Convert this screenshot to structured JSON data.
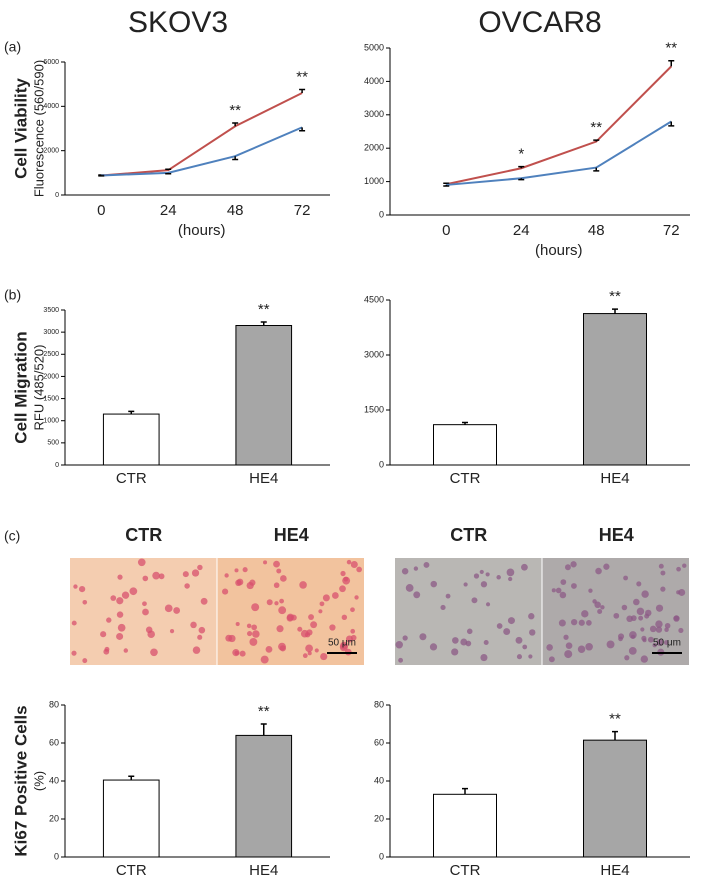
{
  "column_titles": [
    "SKOV3",
    "OVCAR8"
  ],
  "panel_labels": [
    "(a)",
    "(b)",
    "(c)"
  ],
  "micrographs": [
    {
      "labels": [
        "CTR",
        "HE4"
      ],
      "scale_bar": "50 μm"
    },
    {
      "labels": [
        "CTR",
        "HE4"
      ],
      "scale_bar": "50 μm"
    }
  ],
  "chart_data": [
    {
      "type": "line",
      "ylabel": [
        "Cell Viability",
        "Fluorescence (560/590)"
      ],
      "xlabel": "(hours)",
      "x": [
        0,
        24,
        48,
        72
      ],
      "xlim": [
        -13,
        82
      ],
      "xticks": [
        0,
        24,
        48,
        72
      ],
      "ylim": [
        0,
        6000
      ],
      "yticks": [
        0,
        2000,
        4000,
        6000
      ],
      "series": [
        {
          "color": "#c0504d",
          "values": [
            880,
            1120,
            3100,
            4600
          ],
          "errors": [
            20,
            40,
            150,
            160
          ]
        },
        {
          "color": "#4f81bd",
          "values": [
            880,
            1000,
            1750,
            3050
          ],
          "errors": [
            20,
            40,
            150,
            150
          ]
        }
      ],
      "annotations": [
        {
          "x": 48,
          "text": "**"
        },
        {
          "x": 72,
          "text": "**"
        }
      ]
    },
    {
      "type": "line",
      "xlabel": "(hours)",
      "x": [
        0,
        24,
        48,
        72
      ],
      "xlim": [
        -18,
        78
      ],
      "xticks": [
        0,
        24,
        48,
        72
      ],
      "ylim": [
        0,
        5000
      ],
      "yticks": [
        0,
        1000,
        2000,
        3000,
        4000,
        5000
      ],
      "series": [
        {
          "color": "#c0504d",
          "values": [
            920,
            1400,
            2200,
            4450
          ],
          "errors": [
            30,
            50,
            40,
            170
          ]
        },
        {
          "color": "#4f81bd",
          "values": [
            900,
            1100,
            1420,
            2800
          ],
          "errors": [
            30,
            40,
            100,
            130
          ]
        }
      ],
      "annotations": [
        {
          "x": 24,
          "text": "*"
        },
        {
          "x": 48,
          "text": "**"
        },
        {
          "x": 72,
          "text": "**"
        }
      ]
    },
    {
      "type": "bar",
      "ylabel": [
        "Cell Migration",
        "RFU (485/520)"
      ],
      "categories": [
        "CTR",
        "HE4"
      ],
      "values": [
        1150,
        3150
      ],
      "errors": [
        60,
        80
      ],
      "colors": [
        "#ffffff",
        "#a6a6a6"
      ],
      "ylim": [
        0,
        3500
      ],
      "yticks": [
        0,
        500,
        1000,
        1500,
        2000,
        2500,
        3000,
        3500
      ],
      "annotations": [
        {
          "at": "HE4",
          "text": "**"
        }
      ]
    },
    {
      "type": "bar",
      "categories": [
        "CTR",
        "HE4"
      ],
      "values": [
        1100,
        4130
      ],
      "errors": [
        60,
        120
      ],
      "colors": [
        "#ffffff",
        "#a6a6a6"
      ],
      "ylim": [
        0,
        4500
      ],
      "yticks": [
        0,
        1500,
        3000,
        4500
      ],
      "annotations": [
        {
          "at": "HE4",
          "text": "**"
        }
      ]
    },
    {
      "type": "bar",
      "ylabel": [
        "Ki67 Positive Cells",
        "(%)"
      ],
      "categories": [
        "CTR",
        "HE4"
      ],
      "values": [
        40.5,
        64
      ],
      "errors": [
        2,
        6
      ],
      "colors": [
        "#ffffff",
        "#a6a6a6"
      ],
      "ylim": [
        0,
        80
      ],
      "yticks": [
        0,
        20,
        40,
        60,
        80
      ],
      "annotations": [
        {
          "at": "HE4",
          "text": "**"
        }
      ]
    },
    {
      "type": "bar",
      "categories": [
        "CTR",
        "HE4"
      ],
      "values": [
        33,
        61.5
      ],
      "errors": [
        3,
        4.5
      ],
      "colors": [
        "#ffffff",
        "#a6a6a6"
      ],
      "ylim": [
        0,
        80
      ],
      "yticks": [
        0,
        20,
        40,
        60,
        80
      ],
      "annotations": [
        {
          "at": "HE4",
          "text": "**"
        }
      ]
    }
  ]
}
